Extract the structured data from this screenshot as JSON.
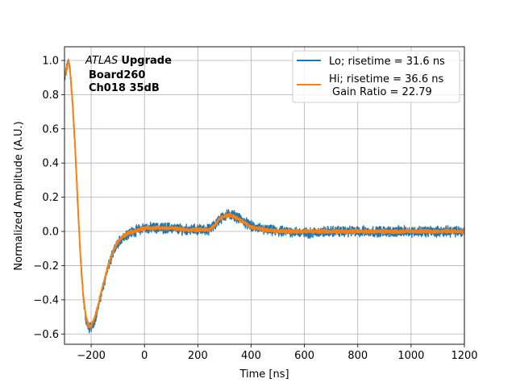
{
  "chart_data": {
    "type": "line",
    "xlabel": "Time [ns]",
    "ylabel": "Normalized Amplitude (A.U.)",
    "xlim": [
      -300,
      1200
    ],
    "ylim": [
      -0.66,
      1.08
    ],
    "xticks": [
      -200,
      0,
      200,
      400,
      600,
      800,
      1000,
      1200
    ],
    "xtick_labels": [
      "−200",
      "0",
      "200",
      "400",
      "600",
      "800",
      "1000",
      "1200"
    ],
    "yticks": [
      -0.6,
      -0.4,
      -0.2,
      0.0,
      0.2,
      0.4,
      0.6,
      0.8,
      1.0
    ],
    "ytick_labels": [
      "−0.6",
      "−0.4",
      "−0.2",
      "0.0",
      "0.2",
      "0.4",
      "0.6",
      "0.8",
      "1.0"
    ],
    "grid": true,
    "legend_position": "top-right",
    "annotation": {
      "atlas": "ATLAS",
      "upgrade": "Upgrade",
      "board": "Board260",
      "channel": "Ch018 35dB"
    },
    "series": [
      {
        "name": "Lo; risetime = 31.6 ns",
        "color": "#1f77b4",
        "noise": 0.024,
        "x": [
          -300,
          -290,
          -285,
          -280,
          -270,
          -260,
          -250,
          -240,
          -230,
          -220,
          -210,
          -205,
          -200,
          -190,
          -180,
          -170,
          -160,
          -150,
          -140,
          -130,
          -120,
          -110,
          -100,
          -80,
          -60,
          -40,
          -20,
          0,
          50,
          100,
          150,
          200,
          240,
          260,
          280,
          300,
          320,
          340,
          360,
          380,
          400,
          450,
          500,
          550,
          600,
          700,
          800,
          900,
          1000,
          1100,
          1200
        ],
        "y": [
          0.88,
          0.97,
          1.0,
          0.96,
          0.75,
          0.48,
          0.15,
          -0.16,
          -0.38,
          -0.51,
          -0.56,
          -0.565,
          -0.56,
          -0.53,
          -0.48,
          -0.42,
          -0.35,
          -0.29,
          -0.23,
          -0.18,
          -0.14,
          -0.1,
          -0.07,
          -0.03,
          -0.01,
          0.0,
          0.01,
          0.02,
          0.02,
          0.02,
          0.01,
          0.01,
          0.01,
          0.03,
          0.07,
          0.09,
          0.1,
          0.09,
          0.07,
          0.05,
          0.03,
          0.01,
          0.0,
          0.0,
          -0.01,
          0.0,
          0.0,
          0.0,
          0.0,
          0.0,
          0.0
        ]
      },
      {
        "name": "Hi; risetime = 36.6 ns",
        "name_line2": "Gain Ratio = 22.79",
        "color": "#ff7f0e",
        "noise": 0.008,
        "x": [
          -300,
          -290,
          -285,
          -280,
          -270,
          -260,
          -250,
          -240,
          -230,
          -220,
          -210,
          -205,
          -200,
          -190,
          -180,
          -170,
          -160,
          -150,
          -140,
          -130,
          -120,
          -110,
          -100,
          -80,
          -60,
          -40,
          -20,
          0,
          50,
          100,
          150,
          200,
          240,
          260,
          280,
          300,
          320,
          340,
          360,
          380,
          400,
          450,
          500,
          550,
          600,
          700,
          800,
          900,
          1000,
          1100,
          1200
        ],
        "y": [
          0.9,
          0.97,
          1.0,
          0.96,
          0.76,
          0.49,
          0.16,
          -0.15,
          -0.37,
          -0.5,
          -0.55,
          -0.555,
          -0.55,
          -0.52,
          -0.47,
          -0.41,
          -0.34,
          -0.28,
          -0.22,
          -0.17,
          -0.13,
          -0.09,
          -0.06,
          -0.03,
          -0.01,
          0.0,
          0.01,
          0.02,
          0.02,
          0.02,
          0.01,
          0.01,
          0.01,
          0.03,
          0.07,
          0.09,
          0.095,
          0.085,
          0.065,
          0.045,
          0.025,
          0.01,
          0.0,
          0.0,
          0.0,
          0.0,
          0.0,
          0.0,
          0.0,
          0.0,
          0.0
        ]
      }
    ]
  }
}
